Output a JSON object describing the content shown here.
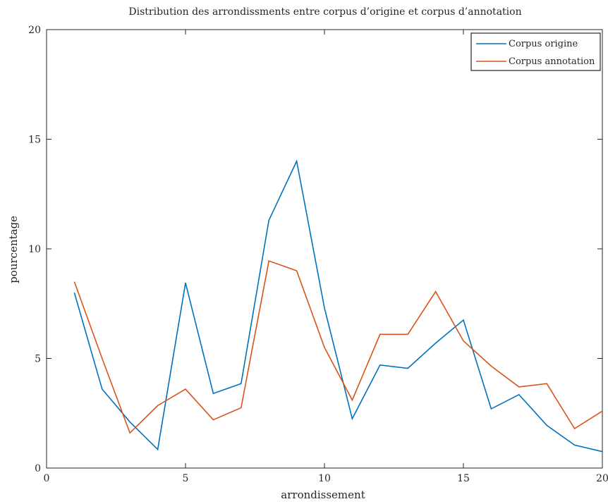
{
  "chart_data": {
    "type": "line",
    "title": "Distribution des arrondissments entre corpus d’origine et corpus d’annotation",
    "xlabel": "arrondissement",
    "ylabel": "pourcentage",
    "xlim": [
      0,
      20
    ],
    "ylim": [
      0,
      20
    ],
    "xticks": [
      "0",
      "5",
      "10",
      "15",
      "20"
    ],
    "yticks": [
      "0",
      "5",
      "10",
      "15",
      "20"
    ],
    "grid": false,
    "legend_position": "top-right",
    "x": [
      1,
      2,
      3,
      4,
      5,
      6,
      7,
      8,
      9,
      10,
      11,
      12,
      13,
      14,
      15,
      16,
      17,
      18,
      19,
      20
    ],
    "series": [
      {
        "name": "Corpus origine",
        "color": "#0072bd",
        "values": [
          8.0,
          3.6,
          2.1,
          0.85,
          8.45,
          3.4,
          3.85,
          11.3,
          14.0,
          7.3,
          2.25,
          4.7,
          4.55,
          5.7,
          6.75,
          2.7,
          3.35,
          1.95,
          1.05,
          0.75
        ]
      },
      {
        "name": "Corpus annotation",
        "color": "#d95319",
        "values": [
          8.5,
          5.0,
          1.6,
          2.85,
          3.6,
          2.2,
          2.75,
          9.45,
          9.0,
          5.5,
          3.1,
          6.1,
          6.1,
          8.05,
          5.8,
          4.65,
          3.7,
          3.85,
          1.8,
          2.6
        ]
      }
    ]
  }
}
